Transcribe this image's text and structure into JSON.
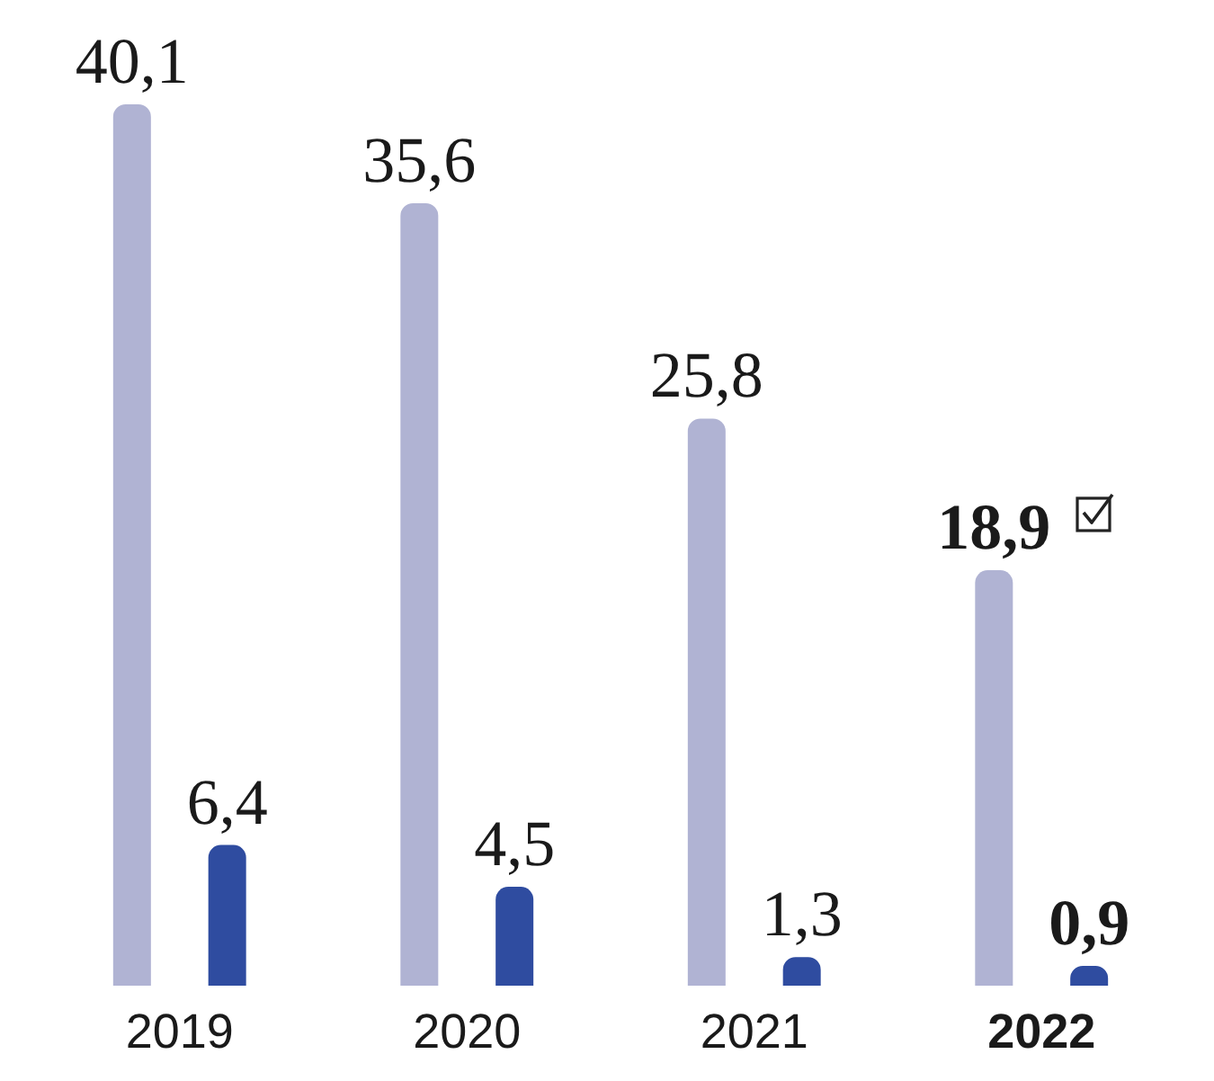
{
  "chart_data": {
    "type": "bar",
    "categories": [
      "2019",
      "2020",
      "2021",
      "2022"
    ],
    "series": [
      {
        "color": "#b0b3d3",
        "values": [
          40.1,
          35.6,
          25.8,
          18.9
        ],
        "value_labels": [
          "40,1",
          "35,6",
          "25,8",
          "18,9"
        ]
      },
      {
        "color": "#2f4ca0",
        "values": [
          6.4,
          4.5,
          1.3,
          0.9
        ],
        "value_labels": [
          "6,4",
          "4,5",
          "1,3",
          "0,9"
        ]
      }
    ]
  }
}
